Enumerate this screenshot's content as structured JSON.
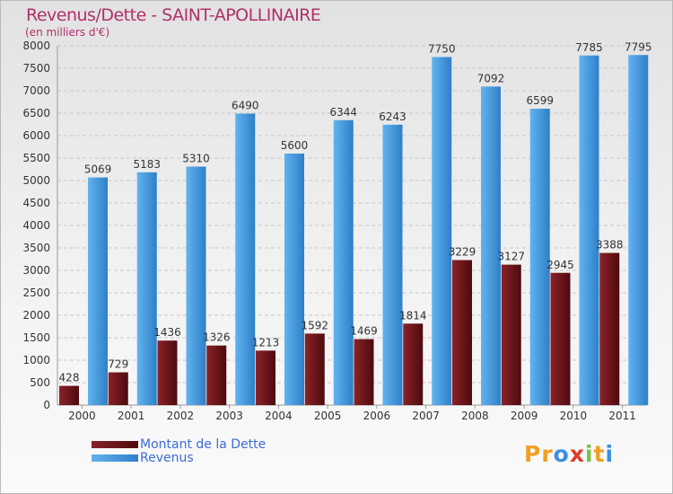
{
  "header": {
    "title": "Revenus/Dette - SAINT-APOLLINAIRE",
    "subtitle": "(en milliers d'€)"
  },
  "colors": {
    "debt": "#7a1a1f",
    "debt_dark": "#4d0a0e",
    "revenue": "#55a8e8",
    "revenue_dark": "#2e7fc8",
    "title": "#b0306a"
  },
  "chart_data": {
    "type": "bar",
    "title": "Revenus/Dette - SAINT-APOLLINAIRE",
    "subtitle": "(en milliers d'€)",
    "xlabel": "",
    "ylabel": "",
    "ylim": [
      0,
      8000
    ],
    "yticks": [
      0,
      500,
      1000,
      1500,
      2000,
      2500,
      3000,
      3500,
      4000,
      4500,
      5000,
      5500,
      6000,
      6500,
      7000,
      7500,
      8000
    ],
    "grid": true,
    "legend_position": "bottom-left",
    "categories": [
      "2000",
      "2001",
      "2002",
      "2003",
      "2004",
      "2005",
      "2006",
      "2007",
      "2008",
      "2009",
      "2010",
      "2011"
    ],
    "series": [
      {
        "name": "Montant de la Dette",
        "values": [
          428,
          729,
          1436,
          1326,
          1213,
          1592,
          1469,
          1814,
          3229,
          3127,
          2945,
          3388
        ]
      },
      {
        "name": "Revenus",
        "values": [
          5069,
          5183,
          5310,
          6490,
          5600,
          6344,
          6243,
          7750,
          7092,
          6599,
          7785,
          7795
        ]
      }
    ]
  },
  "legend": {
    "items": [
      {
        "label": "Montant de la Dette"
      },
      {
        "label": "Revenus"
      }
    ]
  },
  "logo": {
    "letters": [
      {
        "ch": "P",
        "color": "#f0a020"
      },
      {
        "ch": "r",
        "color": "#f0a020"
      },
      {
        "ch": "o",
        "color": "#3c8fe0"
      },
      {
        "ch": "x",
        "color": "#e03c2a"
      },
      {
        "ch": "i",
        "color": "#7cc04a"
      },
      {
        "ch": "t",
        "color": "#f0a020"
      },
      {
        "ch": "i",
        "color": "#3c8fe0"
      }
    ]
  }
}
